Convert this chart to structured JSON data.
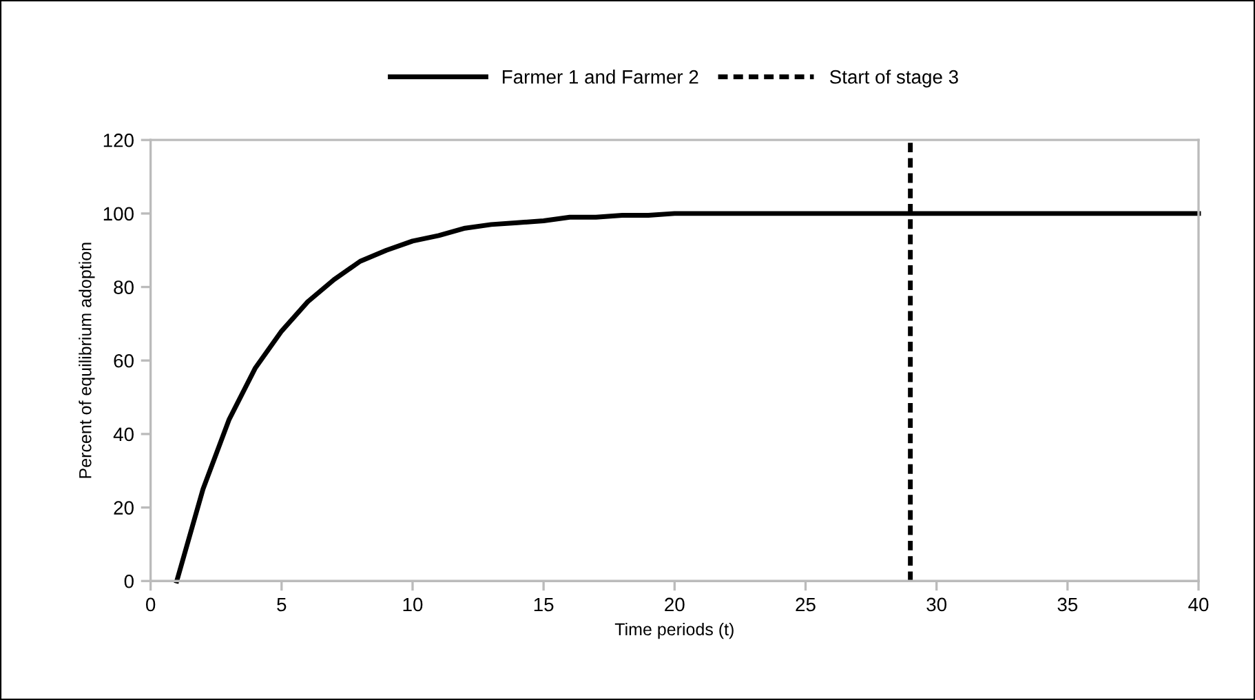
{
  "chart_data": {
    "type": "line",
    "xlabel": "Time periods (t)",
    "ylabel": "Percent of equilibrium adoption",
    "series": [
      {
        "name": "Farmer 1 and Farmer 2",
        "color": "#000000",
        "line_style": "solid",
        "x": [
          1,
          2,
          3,
          4,
          5,
          6,
          7,
          8,
          9,
          10,
          11,
          12,
          13,
          14,
          15,
          16,
          17,
          18,
          19,
          20,
          22,
          24,
          26,
          28,
          30,
          32,
          34,
          36,
          38,
          40
        ],
        "values": [
          0,
          25,
          44,
          58,
          68,
          76,
          82,
          87,
          90,
          92.5,
          94,
          96,
          97,
          97.5,
          98,
          99,
          99,
          99.5,
          99.5,
          100,
          100,
          100,
          100,
          100,
          100,
          100,
          100,
          100,
          100,
          100
        ]
      },
      {
        "name": "Start of stage 3",
        "color": "#000000",
        "line_style": "dashed",
        "x": [
          29,
          29
        ],
        "values": [
          0,
          120
        ]
      }
    ],
    "xlim": [
      0,
      40
    ],
    "xticks": [
      0,
      5,
      10,
      15,
      20,
      25,
      30,
      35,
      40
    ],
    "ylim": [
      0,
      120
    ],
    "yticks": [
      0,
      20,
      40,
      60,
      80,
      100,
      120
    ],
    "grid": false,
    "legend": "top",
    "marker": "none"
  }
}
